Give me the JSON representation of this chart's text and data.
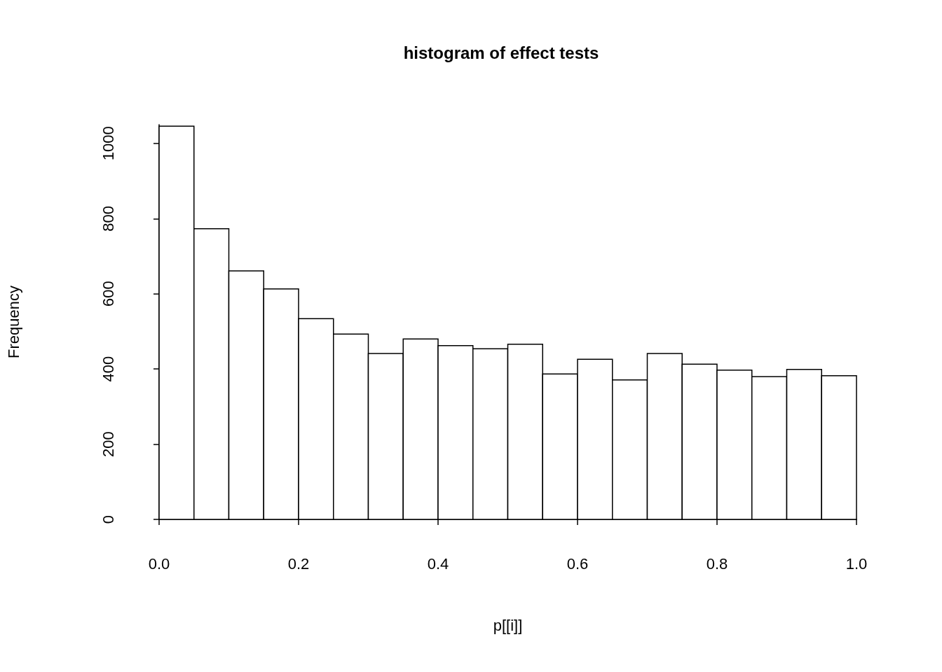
{
  "chart_data": {
    "type": "histogram",
    "title": "histogram of effect tests",
    "xlabel": "p[[i]]",
    "ylabel": "Frequency",
    "bins": [
      0,
      0.05,
      0.1,
      0.15,
      0.2,
      0.25,
      0.3,
      0.35,
      0.4,
      0.45,
      0.5,
      0.55,
      0.6,
      0.65,
      0.7,
      0.75,
      0.8,
      0.85,
      0.9,
      0.95,
      1.0
    ],
    "values": [
      1046,
      773,
      661,
      613,
      534,
      493,
      441,
      480,
      462,
      454,
      466,
      387,
      426,
      371,
      441,
      413,
      397,
      380,
      399,
      382
    ],
    "color": "#ffffff",
    "xlim": [
      0,
      1
    ],
    "xticks": [
      {
        "value": 0,
        "label": "0.0"
      },
      {
        "value": 0.2,
        "label": "0.2"
      },
      {
        "value": 0.4,
        "label": "0.4"
      },
      {
        "value": 0.6,
        "label": "0.6"
      },
      {
        "value": 0.8,
        "label": "0.8"
      },
      {
        "value": 1,
        "label": "1.0"
      }
    ],
    "ylim": [
      0,
      1050
    ],
    "yticks": [
      0,
      200,
      400,
      600,
      800,
      1000
    ],
    "grid": false
  }
}
